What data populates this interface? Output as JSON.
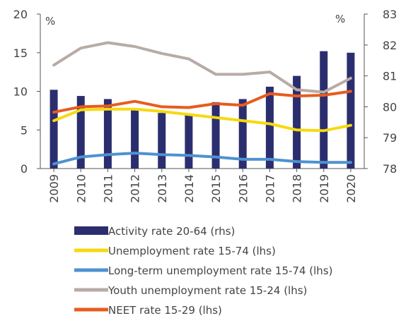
{
  "chart_data": {
    "type": "bar+line",
    "categories": [
      "2009",
      "2010",
      "2011",
      "2012",
      "2013",
      "2014",
      "2015",
      "2016",
      "2017",
      "2018",
      "2019",
      "2020"
    ],
    "left_axis": {
      "unit_label": "%",
      "ylim": [
        0,
        20
      ],
      "ticks": [
        0,
        5,
        10,
        15,
        20
      ],
      "tick_labels": [
        "0",
        "5",
        "10",
        "15",
        "20"
      ]
    },
    "right_axis": {
      "unit_label": "%",
      "ylim": [
        78,
        83
      ],
      "ticks": [
        78,
        79,
        80,
        81,
        82,
        83
      ],
      "tick_labels": [
        "78",
        "79",
        "80",
        "81",
        "82",
        "83"
      ]
    },
    "bars": {
      "name": "Activity rate 20-64 (rhs)",
      "axis": "right",
      "color": "#2b2e6e",
      "values": [
        80.55,
        80.35,
        80.25,
        79.9,
        79.8,
        79.75,
        80.15,
        80.25,
        80.65,
        81.0,
        81.8,
        81.75
      ]
    },
    "series": [
      {
        "name": "Unemployment rate 15-74 (lhs)",
        "axis": "left",
        "color": "#f6d90f",
        "values": [
          6.2,
          7.6,
          7.7,
          7.7,
          7.4,
          7.0,
          6.6,
          6.2,
          5.8,
          5.0,
          4.9,
          5.6
        ]
      },
      {
        "name": "Long-term unemployment rate 15-74 (lhs)",
        "axis": "left",
        "color": "#4e92d1",
        "values": [
          0.6,
          1.5,
          1.8,
          2.0,
          1.8,
          1.7,
          1.5,
          1.2,
          1.2,
          0.9,
          0.8,
          0.8
        ]
      },
      {
        "name": "Youth unemployment rate 15-24 (lhs)",
        "axis": "left",
        "color": "#b8aba6",
        "values": [
          13.4,
          15.6,
          16.3,
          15.8,
          14.9,
          14.2,
          12.2,
          12.2,
          12.5,
          10.2,
          9.9,
          11.7
        ]
      },
      {
        "name": "NEET rate 15-29 (lhs)",
        "axis": "left",
        "color": "#e85b1e",
        "values": [
          7.3,
          8.0,
          8.1,
          8.7,
          8.0,
          7.9,
          8.4,
          8.2,
          9.7,
          9.4,
          9.5,
          10.0
        ]
      }
    ],
    "legend_position": "bottom",
    "grid": false
  }
}
